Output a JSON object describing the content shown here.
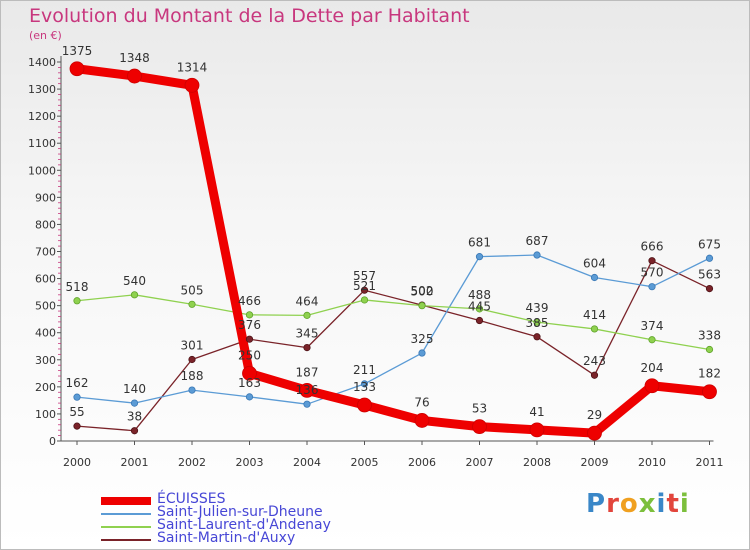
{
  "title": "Evolution du Montant de la Dette par Habitant",
  "unit_label": "(en €)",
  "logo": {
    "letters": [
      "P",
      "r",
      "o",
      "x",
      "i",
      "t",
      "i"
    ],
    "colors": [
      "#3a87c8",
      "#e2453c",
      "#f0a020",
      "#7cbf3c",
      "#3a87c8",
      "#e2453c",
      "#7cbf3c"
    ]
  },
  "chart_data": {
    "type": "line",
    "x": [
      "2000",
      "2001",
      "2002",
      "2003",
      "2004",
      "2005",
      "2006",
      "2007",
      "2008",
      "2009",
      "2010",
      "2011"
    ],
    "ylim": [
      0,
      1400
    ],
    "yticks": [
      0,
      100,
      200,
      300,
      400,
      500,
      600,
      700,
      800,
      900,
      1000,
      1100,
      1200,
      1300,
      1400
    ],
    "grid": false,
    "legend_position": "bottom-left",
    "series": [
      {
        "name": "ÉCUISSES",
        "color": "#ee0000",
        "values": [
          1375,
          1348,
          1314,
          250,
          187,
          133,
          76,
          53,
          41,
          29,
          204,
          182
        ]
      },
      {
        "name": "Saint-Julien-sur-Dheune",
        "color": "#5b9bd5",
        "values": [
          162,
          140,
          188,
          163,
          136,
          211,
          325,
          681,
          687,
          604,
          570,
          675
        ]
      },
      {
        "name": "Saint-Laurent-d'Andenay",
        "color": "#8fd14f",
        "values": [
          518,
          540,
          505,
          466,
          464,
          521,
          500,
          488,
          439,
          414,
          374,
          338
        ]
      },
      {
        "name": "Saint-Martin-d'Auxy",
        "color": "#7a2329",
        "values": [
          55,
          38,
          301,
          376,
          345,
          557,
          502,
          445,
          385,
          243,
          666,
          563
        ]
      }
    ]
  }
}
